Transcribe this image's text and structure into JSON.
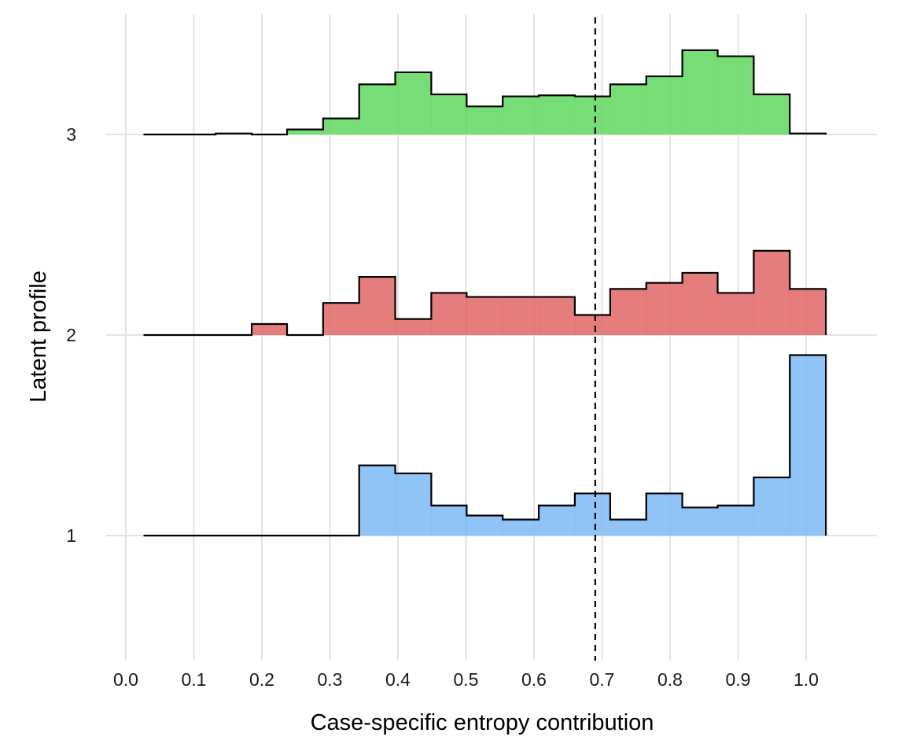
{
  "chart_data": {
    "type": "ridgeline-histogram",
    "xlabel": "Case-specific entropy contribution",
    "ylabel": "Latent profile",
    "xlim": [
      -0.03,
      1.1
    ],
    "x_ticks": [
      "0.0",
      "0.1",
      "0.2",
      "0.3",
      "0.4",
      "0.5",
      "0.6",
      "0.7",
      "0.8",
      "0.9",
      "1.0"
    ],
    "x_tick_values": [
      0.0,
      0.1,
      0.2,
      0.3,
      0.4,
      0.5,
      0.6,
      0.7,
      0.8,
      0.9,
      1.0
    ],
    "y_ticks": [
      "1",
      "2",
      "3"
    ],
    "y_tick_values": [
      1,
      2,
      3
    ],
    "ylim": [
      0.4,
      3.6
    ],
    "grid": true,
    "reference_line": {
      "x": 0.69,
      "style": "dashed",
      "color": "#000000"
    },
    "bin_edges": [
      0.026,
      0.079,
      0.132,
      0.185,
      0.237,
      0.29,
      0.343,
      0.396,
      0.449,
      0.501,
      0.554,
      0.607,
      0.66,
      0.712,
      0.765,
      0.818,
      0.87,
      0.923,
      0.976,
      1.029
    ],
    "series": [
      {
        "profile": "1",
        "color": "#7cb8f4",
        "heights": [
          0,
          0,
          0,
          0,
          0,
          0,
          0.35,
          0.31,
          0.15,
          0.1,
          0.08,
          0.15,
          0.21,
          0.08,
          0.21,
          0.14,
          0.15,
          0.29,
          0.9
        ]
      },
      {
        "profile": "2",
        "color": "#e06666",
        "heights": [
          0,
          0,
          0,
          0.055,
          0,
          0.16,
          0.29,
          0.08,
          0.21,
          0.19,
          0.19,
          0.19,
          0.1,
          0.23,
          0.26,
          0.31,
          0.21,
          0.42,
          0.23
        ]
      },
      {
        "profile": "3",
        "color": "#5fd85f",
        "heights": [
          0,
          0,
          0.005,
          0,
          0.025,
          0.08,
          0.25,
          0.31,
          0.2,
          0.14,
          0.19,
          0.195,
          0.19,
          0.25,
          0.29,
          0.42,
          0.39,
          0.2,
          0.005
        ]
      }
    ]
  }
}
